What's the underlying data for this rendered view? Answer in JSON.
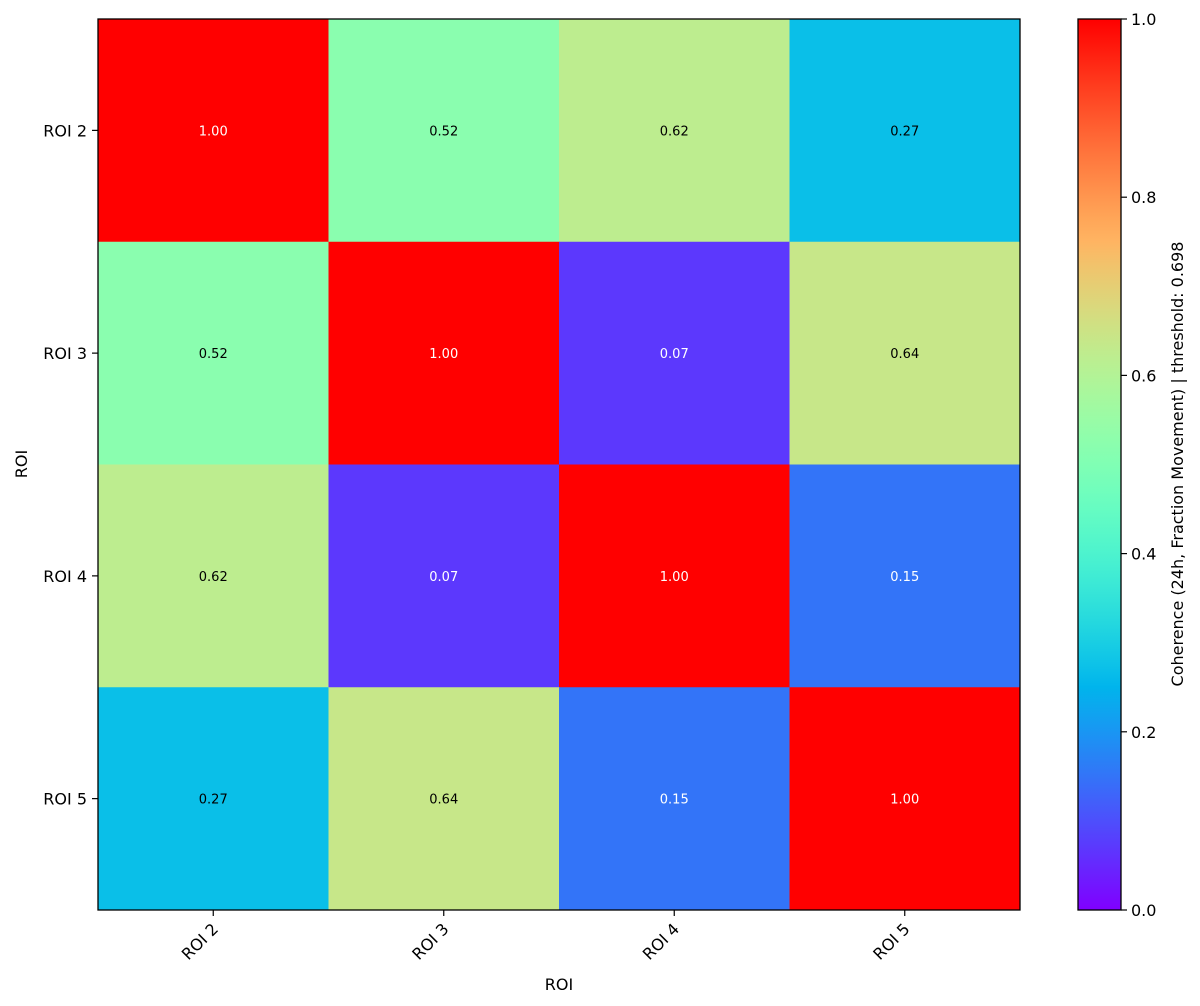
{
  "chart_data": {
    "type": "heatmap",
    "x_categories": [
      "ROI 2",
      "ROI 3",
      "ROI 4",
      "ROI 5"
    ],
    "y_categories": [
      "ROI 2",
      "ROI 3",
      "ROI 4",
      "ROI 5"
    ],
    "values": [
      [
        1.0,
        0.52,
        0.62,
        0.27
      ],
      [
        0.52,
        1.0,
        0.07,
        0.64
      ],
      [
        0.62,
        0.07,
        1.0,
        0.15
      ],
      [
        0.27,
        0.64,
        0.15,
        1.0
      ]
    ],
    "cell_labels": [
      [
        "1.00",
        "0.52",
        "0.62",
        "0.27"
      ],
      [
        "0.52",
        "1.00",
        "0.07",
        "0.64"
      ],
      [
        "0.62",
        "0.07",
        "1.00",
        "0.15"
      ],
      [
        "0.27",
        "0.64",
        "0.15",
        "1.00"
      ]
    ],
    "xlabel": "ROI",
    "ylabel": "ROI",
    "colormap": "rainbow",
    "vmin": 0.0,
    "vmax": 1.0,
    "colorbar": {
      "label": "Coherence (24h, Fraction Movement)  |  threshold: 0.698",
      "ticks": [
        0.0,
        0.2,
        0.4,
        0.6,
        0.8,
        1.0
      ],
      "tick_labels": [
        "0.0",
        "0.2",
        "0.4",
        "0.6",
        "0.8",
        "1.0"
      ]
    },
    "grid": false,
    "text_color_dark": "#000000",
    "text_color_light": "#ffffff"
  }
}
